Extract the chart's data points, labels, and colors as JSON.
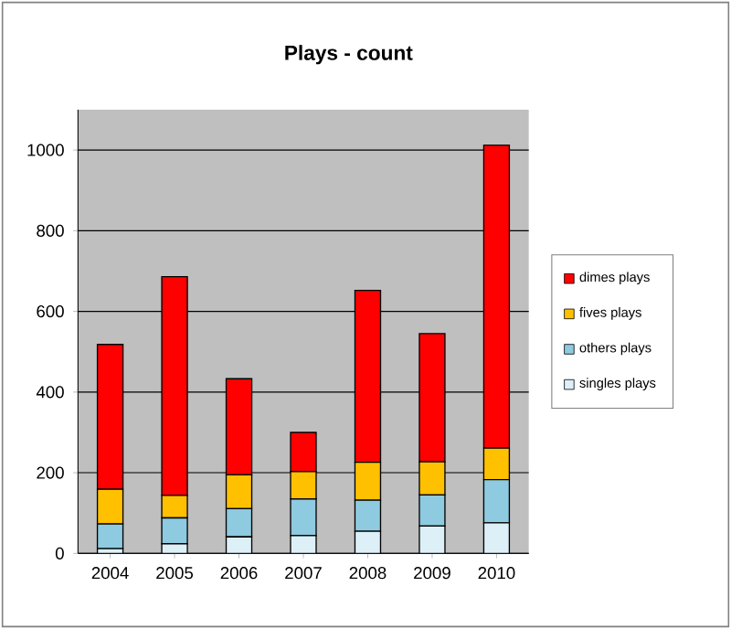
{
  "chart_data": {
    "type": "bar",
    "title": "Plays - count",
    "stacked": true,
    "categories": [
      "2004",
      "2005",
      "2006",
      "2007",
      "2008",
      "2009",
      "2010"
    ],
    "series": [
      {
        "name": "singles plays",
        "color": "#ddf0f8",
        "values": [
          12,
          24,
          41,
          44,
          55,
          68,
          76
        ]
      },
      {
        "name": "others plays",
        "color": "#8ecae0",
        "values": [
          61,
          64,
          70,
          91,
          77,
          77,
          107
        ]
      },
      {
        "name": "fives plays",
        "color": "#ffc000",
        "values": [
          86,
          56,
          84,
          68,
          94,
          82,
          78
        ]
      },
      {
        "name": "dimes plays",
        "color": "#ff0000",
        "values": [
          359,
          542,
          238,
          97,
          426,
          318,
          751
        ]
      }
    ],
    "ylim": [
      0,
      1100
    ],
    "yticks": [
      0,
      200,
      400,
      600,
      800,
      1000
    ],
    "grid": "y",
    "legend": "right"
  }
}
